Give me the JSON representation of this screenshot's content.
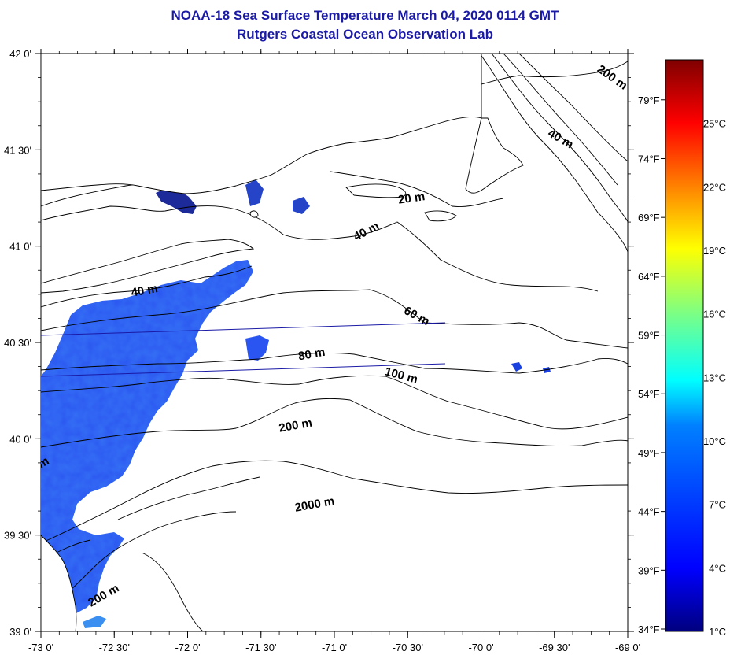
{
  "title": "NOAA-18 Sea Surface Temperature March 04, 2020 0114 GMT",
  "subtitle": "Rutgers Coastal Ocean Observation Lab",
  "map": {
    "lon_range": [
      -73.0,
      -69.0
    ],
    "lat_range": [
      39.0,
      42.0
    ],
    "lon_labels": [
      "-73 0'",
      "-72 30'",
      "-72 0'",
      "-71 30'",
      "-71 0'",
      "-70 30'",
      "-70 0'",
      "-69 30'",
      "-69 0'"
    ],
    "lat_labels": [
      "42 0'",
      "41 30'",
      "41 0'",
      "40 30'",
      "40 0'",
      "39 30'",
      "39 0'"
    ],
    "land_color": "#ffffff",
    "contour_labels": [
      {
        "text": "200 m",
        "lon": -69.12,
        "lat": 41.86,
        "angle": 35
      },
      {
        "text": "40 m",
        "lon": -69.47,
        "lat": 41.54,
        "angle": 30
      },
      {
        "text": "20 m",
        "lon": -70.47,
        "lat": 41.23,
        "angle": -8
      },
      {
        "text": "40 m",
        "lon": -70.77,
        "lat": 41.06,
        "angle": -28
      },
      {
        "text": "40 m",
        "lon": -72.29,
        "lat": 40.75,
        "angle": -10
      },
      {
        "text": "60 m",
        "lon": -70.45,
        "lat": 40.62,
        "angle": 28
      },
      {
        "text": "80 m",
        "lon": -71.15,
        "lat": 40.42,
        "angle": -10
      },
      {
        "text": "100 m",
        "lon": -70.55,
        "lat": 40.31,
        "angle": 15
      },
      {
        "text": "200 m",
        "lon": -71.26,
        "lat": 40.05,
        "angle": -10
      },
      {
        "text": "2000 m",
        "lon": -71.13,
        "lat": 39.64,
        "angle": -10
      },
      {
        "text": "200 m",
        "lon": -72.56,
        "lat": 39.17,
        "angle": -30
      },
      {
        "text": "m",
        "lon": -72.97,
        "lat": 39.86,
        "angle": -30
      }
    ]
  },
  "colorbar": {
    "min_c": 1,
    "max_c": 28,
    "celsius_labels": [
      "25°C",
      "22°C",
      "19°C",
      "16°C",
      "13°C",
      "10°C",
      "7°C",
      "4°C",
      "1°C"
    ],
    "fahrenheit_labels": [
      "79°F",
      "74°F",
      "69°F",
      "64°F",
      "59°F",
      "54°F",
      "49°F",
      "44°F",
      "39°F",
      "34°F"
    ],
    "colors": [
      "#00007f",
      "#0000ff",
      "#0080ff",
      "#00ffff",
      "#80ff80",
      "#ffff00",
      "#ff8000",
      "#ff0000",
      "#7f0000"
    ]
  }
}
